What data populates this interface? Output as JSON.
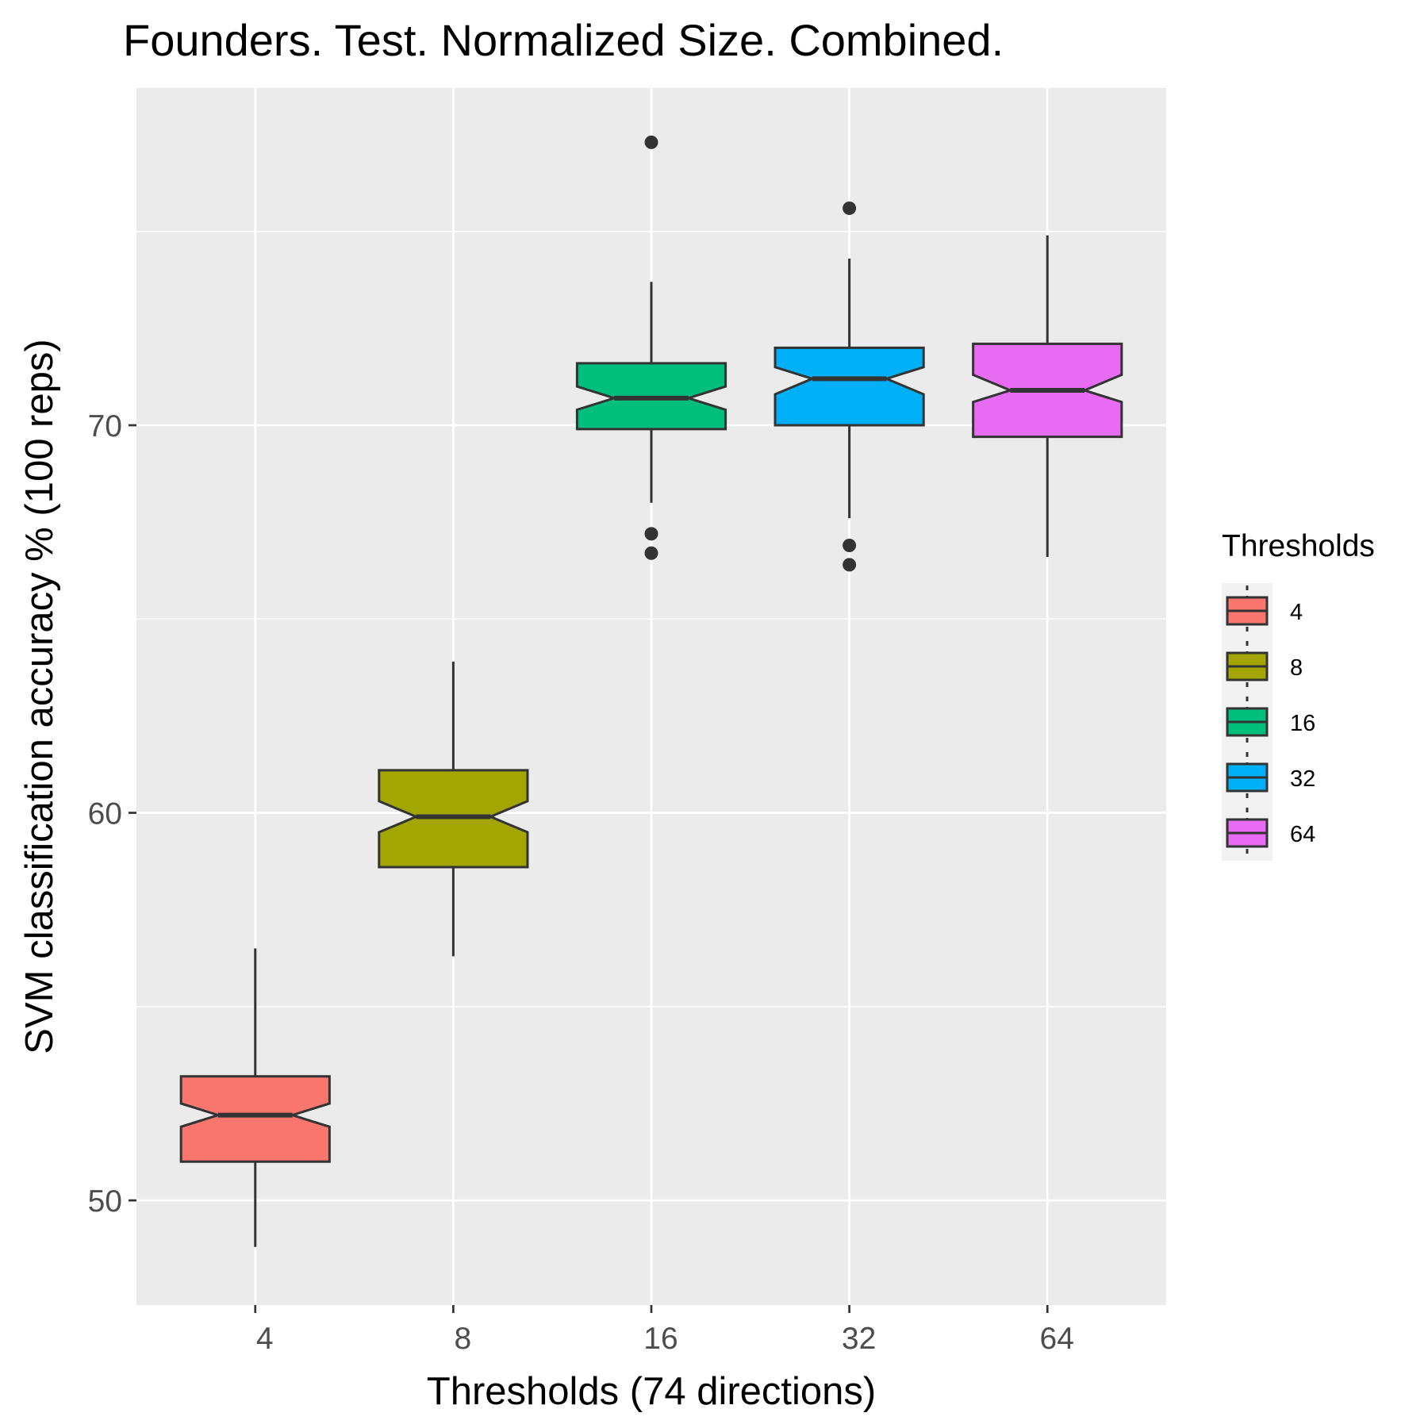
{
  "chart_data": {
    "type": "boxplot",
    "title": "Founders. Test. Normalized Size. Combined.",
    "xlabel": "Thresholds (74 directions)",
    "ylabel": "SVM classification accuracy % (100 reps)",
    "categories": [
      "4",
      "8",
      "16",
      "32",
      "64"
    ],
    "ylim": [
      47.3,
      78.7
    ],
    "yticks": [
      50,
      60,
      70
    ],
    "grid": true,
    "notched": true,
    "legend": {
      "title": "Thresholds",
      "position": "right",
      "entries": [
        "4",
        "8",
        "16",
        "32",
        "64"
      ]
    },
    "colors": [
      "#f8766d",
      "#a3a500",
      "#00bf7d",
      "#00b0f6",
      "#e76bf3"
    ],
    "boxes": [
      {
        "category": "4",
        "whisker_low": 48.8,
        "q1": 51.0,
        "median": 52.2,
        "q3": 53.2,
        "whisker_high": 56.5,
        "notch_low": 51.9,
        "notch_high": 52.5,
        "outliers": []
      },
      {
        "category": "8",
        "whisker_low": 56.3,
        "q1": 58.6,
        "median": 59.9,
        "q3": 61.1,
        "whisker_high": 63.9,
        "notch_low": 59.5,
        "notch_high": 60.3,
        "outliers": []
      },
      {
        "category": "16",
        "whisker_low": 68.0,
        "q1": 69.9,
        "median": 70.7,
        "q3": 71.6,
        "whisker_high": 73.7,
        "notch_low": 70.4,
        "notch_high": 71.0,
        "outliers": [
          77.3,
          67.2,
          66.7
        ]
      },
      {
        "category": "32",
        "whisker_low": 67.6,
        "q1": 70.0,
        "median": 71.2,
        "q3": 72.0,
        "whisker_high": 74.3,
        "notch_low": 70.8,
        "notch_high": 71.5,
        "outliers": [
          75.6,
          66.9,
          66.4
        ]
      },
      {
        "category": "64",
        "whisker_low": 66.6,
        "q1": 69.7,
        "median": 70.9,
        "q3": 72.1,
        "whisker_high": 74.9,
        "notch_low": 70.6,
        "notch_high": 71.3,
        "outliers": []
      }
    ]
  }
}
